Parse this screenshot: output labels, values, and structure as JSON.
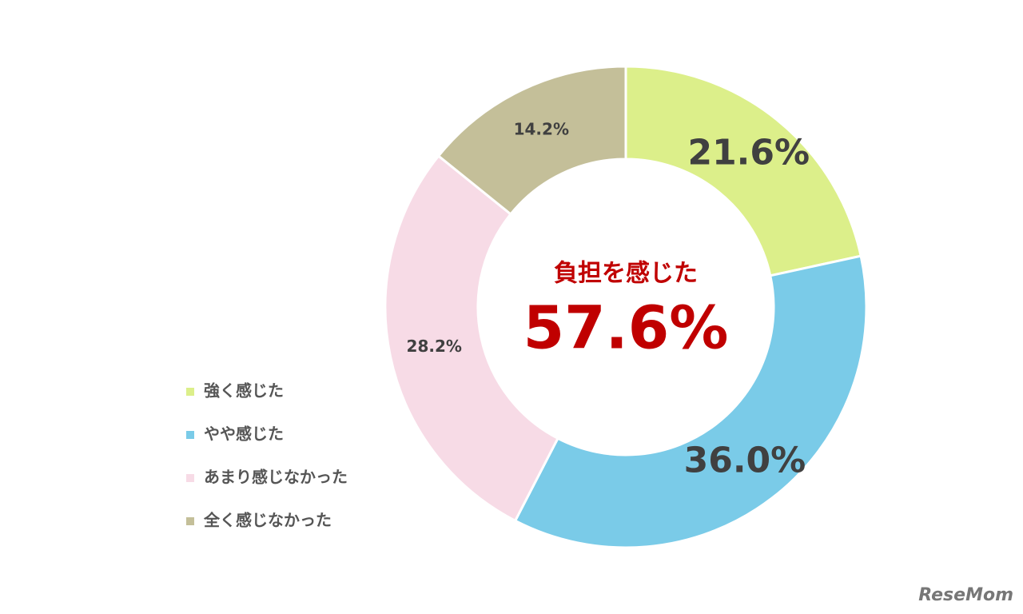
{
  "chart_data": {
    "type": "donut",
    "categories": [
      "強く感じた",
      "やや感じた",
      "あまり感じなかった",
      "全く感じなかった"
    ],
    "values": [
      21.6,
      36.0,
      28.2,
      14.2
    ],
    "value_labels": [
      "21.6%",
      "36.0%",
      "28.2%",
      "14.2%"
    ],
    "colors": [
      "#dcef8a",
      "#7acbe8",
      "#f7dbe6",
      "#c4bf99"
    ],
    "center_label": "負担を感じた",
    "center_value": "57.6%",
    "legend": "lower left",
    "watermark": "ReseMom"
  }
}
